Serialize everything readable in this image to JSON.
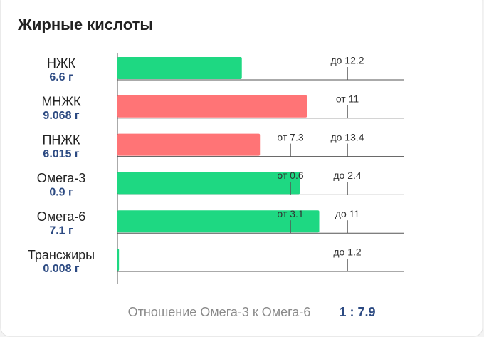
{
  "header": {
    "title": "Жирные кислоты"
  },
  "rows": [
    {
      "name": "НЖК",
      "value": 6.6,
      "value_label": "6.6 г",
      "color": "#1ed882",
      "to": {
        "value": 12.2,
        "label": "до 12.2"
      }
    },
    {
      "name": "МНЖК",
      "value": 9.068,
      "value_label": "9.068 г",
      "color": "#ff7476",
      "from": {
        "value": 11,
        "label": "от 11"
      }
    },
    {
      "name": "ПНЖК",
      "value": 6.015,
      "value_label": "6.015 г",
      "color": "#ff7476",
      "from": {
        "value": 7.3,
        "label": "от 7.3"
      },
      "to": {
        "value": 13.4,
        "label": "до 13.4"
      }
    },
    {
      "name": "Омега-3",
      "value": 0.9,
      "value_label": "0.9 г",
      "color": "#1ed882",
      "from": {
        "value": 0.6,
        "label": "от 0.6"
      },
      "to": {
        "value": 2.4,
        "label": "до 2.4"
      }
    },
    {
      "name": "Омега-6",
      "value": 7.1,
      "value_label": "7.1 г",
      "color": "#1ed882",
      "from": {
        "value": 3.1,
        "label": "от 3.1"
      },
      "to": {
        "value": 11,
        "label": "до 11"
      }
    },
    {
      "name": "Трансжиры",
      "value": 0.008,
      "value_label": "0.008 г",
      "color": "#1ed882",
      "to": {
        "value": 1.2,
        "label": "до 1.2"
      }
    }
  ],
  "ratio": {
    "label": "Отношение Омега-3 к Омега-6",
    "value": "1 : 7.9"
  }
}
